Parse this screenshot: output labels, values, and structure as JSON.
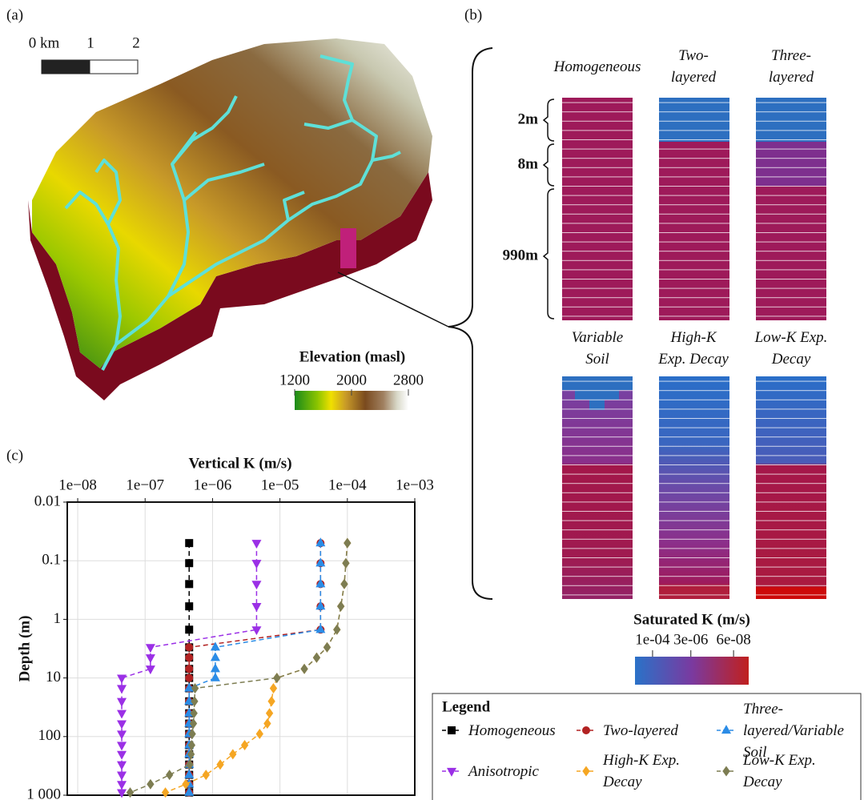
{
  "panel_a": {
    "label": "(a)",
    "scale_bar": {
      "labels": [
        "0 km",
        "1",
        "2"
      ]
    },
    "colorbar": {
      "label": "Elevation (masl)",
      "lim": [
        1200,
        2800
      ],
      "ticks": [
        1200,
        2000,
        2800
      ]
    }
  },
  "panel_b": {
    "label": "(b)",
    "columns": [
      "Homogeneous",
      "Two-layered",
      "Three-layered",
      "Variable Soil",
      "High-K Exp. Decay",
      "Low-K Exp. Decay"
    ],
    "depth_labels": [
      "2m",
      "8m",
      "990m"
    ],
    "colorbar": {
      "label": "Saturated K (m/s)",
      "log": true,
      "lim": [
        0.0005,
        1.5e-08
      ],
      "ticks": [
        {
          "value": 0.0001,
          "label": "1e-04"
        },
        {
          "value": 3e-06,
          "label": "3e-06"
        },
        {
          "value": 6e-08,
          "label": "6e-08"
        }
      ]
    }
  },
  "panel_c_label": "(c)",
  "chart_data": {
    "type": "line",
    "xlabel": "Vertical K (m/s)",
    "ylabel": "Depth (m)",
    "xlog": true,
    "ylog": true,
    "y_inverted": true,
    "x_axis_position": "top",
    "xlim": [
      7e-09,
      0.001
    ],
    "ylim": [
      0.01,
      1000
    ],
    "xticks": [
      {
        "value": 1e-08,
        "label": "1e−08"
      },
      {
        "value": 1e-07,
        "label": "1e−07"
      },
      {
        "value": 1e-06,
        "label": "1e−06"
      },
      {
        "value": 1e-05,
        "label": "1e−05"
      },
      {
        "value": 0.0001,
        "label": "1e−04"
      },
      {
        "value": 0.001,
        "label": "1e−03"
      }
    ],
    "yticks": [
      0.01,
      0.1,
      1,
      10,
      100,
      {
        "value": 1000,
        "label": "1 000"
      }
    ],
    "grid": true,
    "legend_title": "Legend",
    "series": [
      {
        "name": "Homogeneous",
        "color": "#000000",
        "marker": "square",
        "x": [
          4.5e-07,
          4.5e-07,
          4.5e-07,
          4.5e-07,
          4.5e-07,
          4.5e-07,
          4.5e-07,
          4.5e-07,
          4.5e-07,
          4.5e-07,
          4.5e-07,
          4.5e-07,
          4.5e-07,
          4.5e-07,
          4.5e-07,
          4.5e-07,
          4.5e-07,
          4.5e-07,
          4.5e-07,
          4.5e-07
        ],
        "y": [
          0.05,
          0.11,
          0.25,
          0.6,
          1.5,
          3,
          4.5,
          7,
          10,
          15,
          25,
          40,
          60,
          90,
          140,
          200,
          300,
          450,
          650,
          900
        ]
      },
      {
        "name": "Two-layered",
        "color": "#b22222",
        "marker": "circle",
        "x": [
          4e-05,
          4e-05,
          4e-05,
          4e-05,
          4e-05,
          4.5e-07,
          4.5e-07,
          4.5e-07,
          4.5e-07,
          4.5e-07,
          4.5e-07,
          4.5e-07,
          4.5e-07,
          4.5e-07,
          4.5e-07,
          4.5e-07,
          4.5e-07,
          4.5e-07,
          4.5e-07,
          4.5e-07
        ],
        "y": [
          0.05,
          0.11,
          0.25,
          0.6,
          1.5,
          3,
          4.5,
          7,
          10,
          15,
          25,
          40,
          60,
          90,
          140,
          200,
          300,
          450,
          650,
          900
        ]
      },
      {
        "name": "Three-layered/Variable Soil",
        "color": "#2b8ce6",
        "marker": "triangle-up",
        "x": [
          4e-05,
          4e-05,
          4e-05,
          4e-05,
          4e-05,
          1.1e-06,
          1.1e-06,
          1.1e-06,
          1.1e-06,
          4.5e-07,
          4.5e-07,
          4.5e-07,
          4.5e-07,
          4.5e-07,
          4.5e-07,
          4.5e-07,
          4.5e-07,
          4.5e-07,
          4.5e-07,
          4.5e-07
        ],
        "y": [
          0.05,
          0.11,
          0.25,
          0.6,
          1.5,
          3,
          4.5,
          7,
          10,
          15,
          25,
          40,
          60,
          90,
          140,
          200,
          300,
          450,
          650,
          900
        ]
      },
      {
        "name": "Anisotropic",
        "color": "#9b30e6",
        "marker": "triangle-down",
        "x": [
          4.5e-06,
          4.5e-06,
          4.5e-06,
          4.5e-06,
          4.5e-06,
          1.2e-07,
          1.2e-07,
          1.2e-07,
          4.5e-08,
          4.5e-08,
          4.5e-08,
          4.5e-08,
          4.5e-08,
          4.5e-08,
          4.5e-08,
          4.5e-08,
          4.5e-08,
          4.5e-08,
          4.5e-08,
          4.5e-08
        ],
        "y": [
          0.05,
          0.11,
          0.25,
          0.6,
          1.5,
          3,
          4.5,
          7,
          10,
          15,
          25,
          40,
          60,
          90,
          140,
          200,
          300,
          450,
          650,
          900
        ]
      },
      {
        "name": "High-K Exp. Decay",
        "color": "#f5a623",
        "marker": "diamond",
        "x": [
          0.0001,
          9.5e-05,
          9e-05,
          8e-05,
          7e-05,
          5e-05,
          3.5e-05,
          2.3e-05,
          9e-06,
          8e-06,
          7.5e-06,
          7e-06,
          6.5e-06,
          5e-06,
          3e-06,
          2e-06,
          1.3e-06,
          8e-07,
          4e-07,
          2e-07
        ],
        "y": [
          0.05,
          0.11,
          0.25,
          0.6,
          1.5,
          3,
          4.5,
          7,
          10,
          15,
          25,
          40,
          60,
          90,
          140,
          200,
          300,
          450,
          650,
          900
        ]
      },
      {
        "name": "Low-K Exp. Decay",
        "color": "#7d7d52",
        "marker": "diamond",
        "x": [
          0.0001,
          9.5e-05,
          9e-05,
          8e-05,
          7e-05,
          5e-05,
          3.5e-05,
          2.3e-05,
          9e-06,
          5.5e-07,
          5.4e-07,
          5.3e-07,
          5.2e-07,
          5e-07,
          4.9e-07,
          4.8e-07,
          4.6e-07,
          2.3e-07,
          1.2e-07,
          6e-08
        ],
        "y": [
          0.05,
          0.11,
          0.25,
          0.6,
          1.5,
          3,
          4.5,
          7,
          10,
          15,
          25,
          40,
          60,
          90,
          140,
          200,
          300,
          450,
          650,
          900
        ]
      }
    ]
  }
}
